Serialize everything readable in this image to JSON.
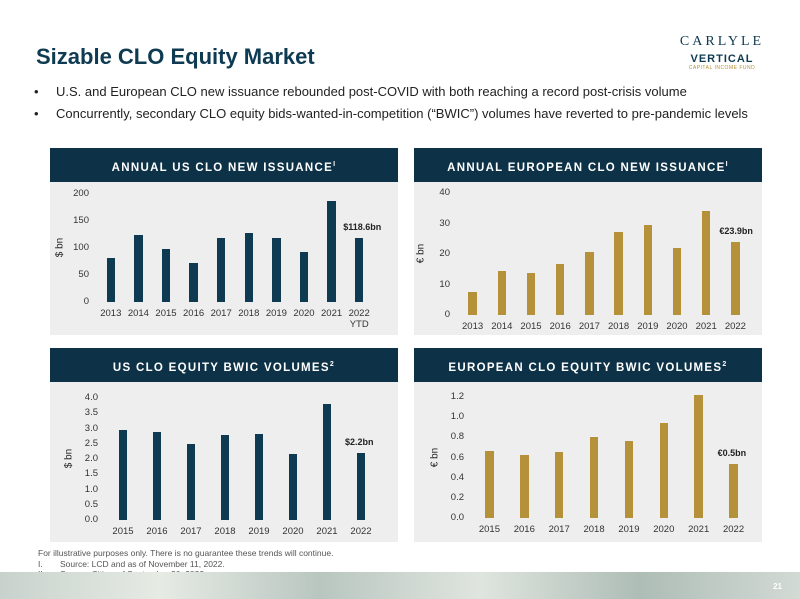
{
  "title": "Sizable CLO Equity Market",
  "logo": {
    "name": "CARLYLE",
    "product": "VERTICAL",
    "tagline": "CAPITAL INCOME FUND"
  },
  "bullets": [
    "U.S. and European CLO new issuance rebounded post-COVID with both reaching a record post-crisis volume",
    "Concurrently, secondary CLO equity bids-wanted-in-competition (“BWIC”) volumes have reverted to pre-pandemic levels"
  ],
  "footnotes": {
    "disclaimer": "For illustrative purposes only. There is no guarantee these trends will continue.",
    "notes": [
      {
        "marker": "I.",
        "text": "Source: LCD and as of November 11, 2022."
      },
      {
        "marker": "II.",
        "text": "Source: Citi as of September 30, 2022."
      }
    ]
  },
  "page_number": "21",
  "chart_data": [
    {
      "type": "bar",
      "title": "ANNUAL US CLO NEW ISSUANCE",
      "footnote_ref": "I",
      "y_label": "$ bn",
      "color": "#0e3a52",
      "categories": [
        "2013",
        "2014",
        "2015",
        "2016",
        "2017",
        "2018",
        "2019",
        "2020",
        "2021",
        "2022 YTD"
      ],
      "values": [
        82,
        124,
        98,
        72,
        118,
        128,
        118,
        93,
        187,
        118.6
      ],
      "value_labels": [
        null,
        null,
        null,
        null,
        null,
        null,
        null,
        null,
        null,
        "$118.6bn"
      ],
      "ylim": [
        0,
        200
      ],
      "yticks": [
        0,
        50,
        100,
        150,
        200
      ]
    },
    {
      "type": "bar",
      "title": "ANNUAL EUROPEAN CLO NEW ISSUANCE",
      "footnote_ref": "I",
      "y_label": "€ bn",
      "color": "#b5913a",
      "categories": [
        "2013",
        "2014",
        "2015",
        "2016",
        "2017",
        "2018",
        "2019",
        "2020",
        "2021",
        "2022"
      ],
      "values": [
        7.5,
        14.5,
        13.8,
        16.8,
        20.6,
        27.2,
        29.5,
        22,
        34,
        23.9
      ],
      "value_labels": [
        null,
        null,
        null,
        null,
        null,
        null,
        null,
        null,
        null,
        "€23.9bn"
      ],
      "ylim": [
        0,
        40
      ],
      "yticks": [
        0,
        10,
        20,
        30,
        40
      ]
    },
    {
      "type": "bar",
      "title": "US CLO EQUITY BWIC VOLUMES",
      "footnote_ref": "2",
      "y_label": "$ bn",
      "color": "#0e3a52",
      "categories": [
        "2015",
        "2016",
        "2017",
        "2018",
        "2019",
        "2020",
        "2021",
        "2022"
      ],
      "values": [
        2.95,
        2.9,
        2.5,
        2.8,
        2.82,
        2.15,
        3.8,
        2.2
      ],
      "value_labels": [
        null,
        null,
        null,
        null,
        null,
        null,
        null,
        "$2.2bn"
      ],
      "ylim": [
        0,
        4
      ],
      "yticks": [
        {
          "value": 0,
          "label": "0.0"
        },
        0.5,
        {
          "value": 1,
          "label": "1.0"
        },
        1.5,
        {
          "value": 2,
          "label": "2.0"
        },
        2.5,
        {
          "value": 3,
          "label": "3.0"
        },
        3.5,
        {
          "value": 4,
          "label": "4.0"
        }
      ]
    },
    {
      "type": "bar",
      "title": "EUROPEAN CLO EQUITY BWIC VOLUMES",
      "footnote_ref": "2",
      "y_label": "€ bn",
      "color": "#b5913a",
      "categories": [
        "2015",
        "2016",
        "2017",
        "2018",
        "2019",
        "2020",
        "2021",
        "2022"
      ],
      "values": [
        0.66,
        0.62,
        0.65,
        0.8,
        0.76,
        0.94,
        1.22,
        0.54
      ],
      "value_labels": [
        null,
        null,
        null,
        null,
        null,
        null,
        null,
        "€0.5bn"
      ],
      "ylim": [
        0,
        1.2
      ],
      "yticks": [
        {
          "value": 0,
          "label": "0.0"
        },
        0.2,
        0.4,
        0.6,
        0.8,
        {
          "value": 1,
          "label": "1.0"
        },
        1.2
      ]
    }
  ]
}
